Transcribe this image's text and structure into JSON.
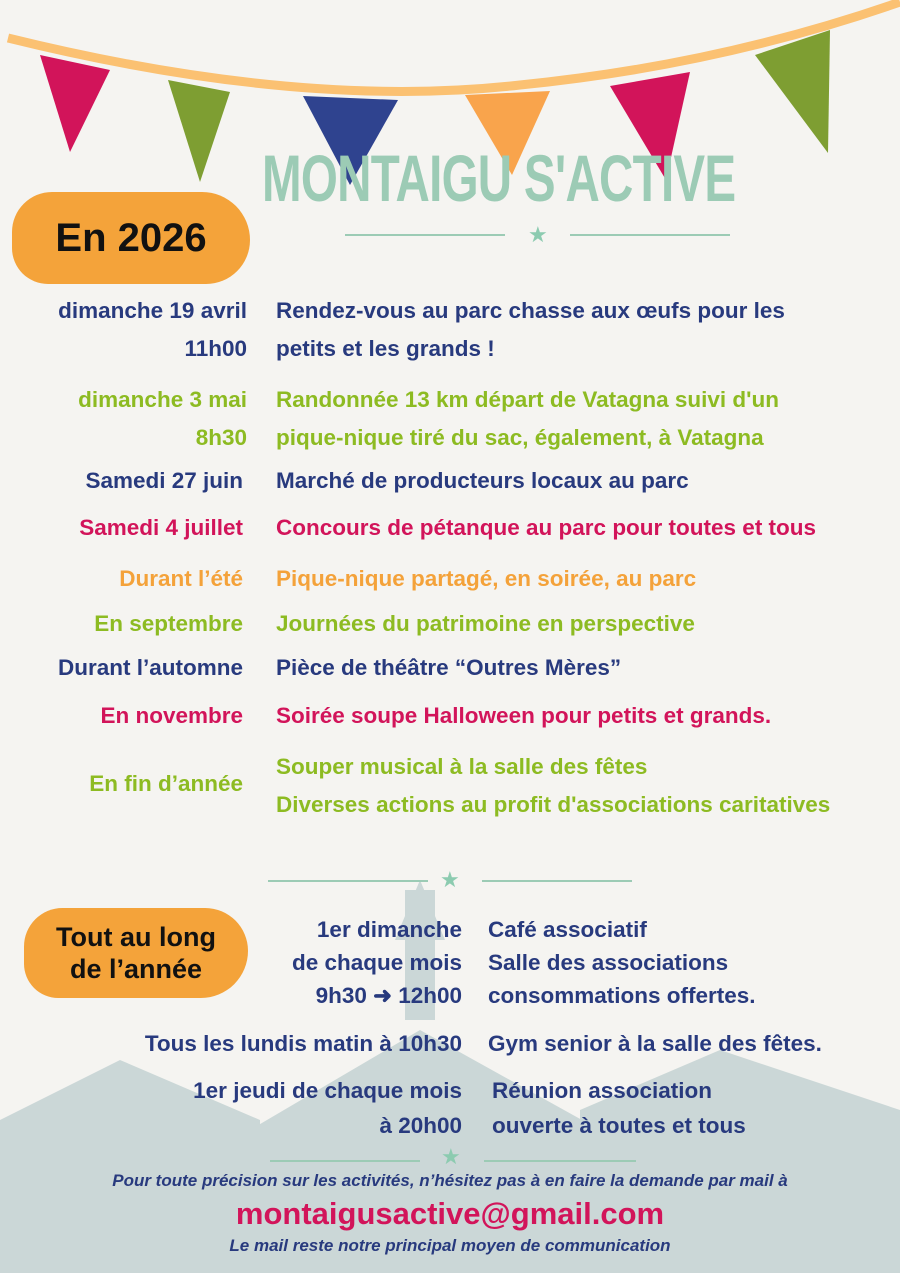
{
  "header": {
    "title": "MONTAIGU S'ACTIVE",
    "year_badge": "En 2026"
  },
  "colors": {
    "navy": "#283a7e",
    "green": "#8dbb22",
    "pink": "#d2145a",
    "orange": "#f4a23a",
    "teal": "#9ccbb5"
  },
  "events": [
    {
      "date": [
        "dimanche 19 avril",
        "11h00"
      ],
      "desc": [
        "Rendez-vous au parc chasse aux œufs pour les",
        "petits et les grands !"
      ],
      "color": "navy"
    },
    {
      "date": [
        "dimanche 3 mai",
        "8h30"
      ],
      "desc": [
        "Randonnée 13 km départ de Vatagna suivi d'un",
        "pique-nique tiré du sac, également, à Vatagna"
      ],
      "color": "green"
    },
    {
      "date": [
        "Samedi 27 juin"
      ],
      "desc": [
        "Marché de producteurs locaux au parc"
      ],
      "color": "navy"
    },
    {
      "date": [
        "Samedi 4 juillet"
      ],
      "desc": [
        "Concours de pétanque au parc pour toutes et tous"
      ],
      "color": "pink"
    },
    {
      "date": [
        "Durant l’été"
      ],
      "desc": [
        "Pique-nique partagé, en soirée, au parc"
      ],
      "color": "orange"
    },
    {
      "date": [
        "En septembre"
      ],
      "desc": [
        "Journées du patrimoine en perspective"
      ],
      "color": "green"
    },
    {
      "date": [
        "Durant l’automne"
      ],
      "desc": [
        "Pièce de théâtre  “Outres Mères”"
      ],
      "color": "navy"
    },
    {
      "date": [
        "En novembre"
      ],
      "desc": [
        "Soirée soupe Halloween pour petits et grands."
      ],
      "color": "pink"
    },
    {
      "date": [
        "En fin d’année"
      ],
      "desc": [
        "Souper musical à la salle des fêtes",
        "Diverses actions au profit d'associations caritatives"
      ],
      "color": "green"
    }
  ],
  "year_round": {
    "badge": [
      "Tout au long",
      "de l’année"
    ],
    "items": [
      {
        "when": [
          "1er dimanche",
          "de chaque mois",
          "9h30 ➜ 12h00"
        ],
        "what": [
          "Café associatif",
          "Salle des  associations",
          "consommations offertes."
        ]
      },
      {
        "when": [
          "Tous les lundis matin à 10h30"
        ],
        "what": [
          "Gym senior à la salle des fêtes."
        ]
      },
      {
        "when": [
          "1er jeudi de chaque mois",
          "à 20h00"
        ],
        "what": [
          "Réunion association",
          "ouverte à toutes et tous"
        ]
      }
    ]
  },
  "footer": {
    "note": "Pour toute précision sur les activités, n’hésitez pas à en faire la demande par mail à",
    "email": "montaigusactive@gmail.com",
    "tagline": "Le mail reste notre principal moyen de communication"
  }
}
